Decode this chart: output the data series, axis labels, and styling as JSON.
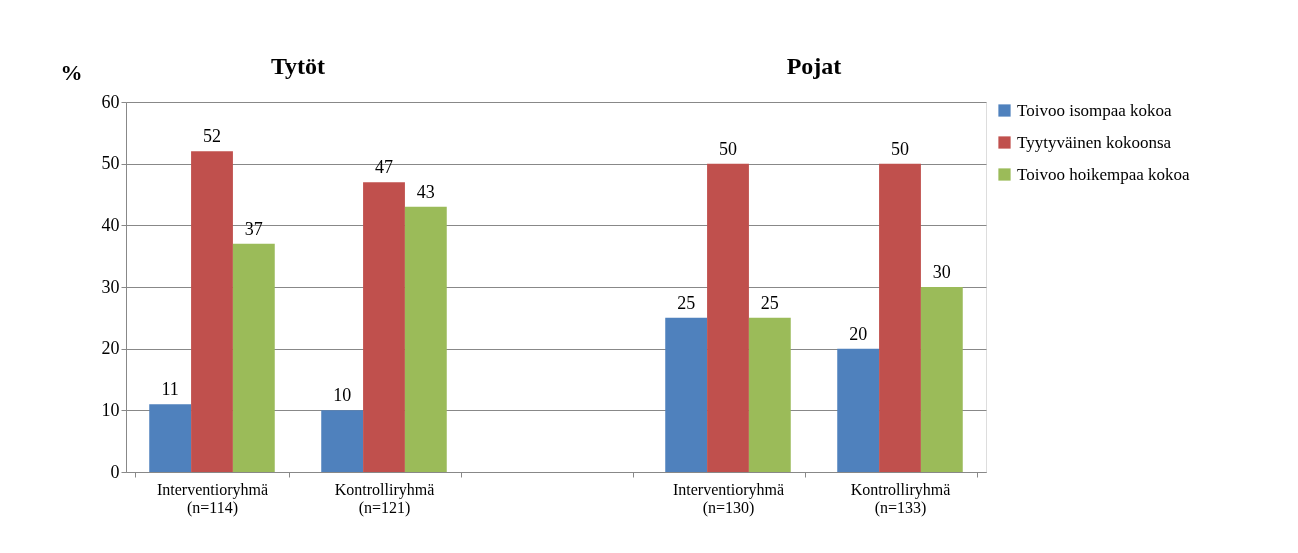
{
  "chart_data": {
    "type": "bar",
    "categories": [
      "Interventioryhmä\n(n=114)",
      "Kontrolliryhmä\n(n=121)",
      null,
      "Interventioryhmä\n(n=130)",
      "Kontrolliryhmä\n(n=133)"
    ],
    "series": [
      {
        "name": "Toivoo isompaa kokoa",
        "color": "#4f81bd",
        "values": [
          11,
          10,
          null,
          25,
          20
        ]
      },
      {
        "name": "Tyytyväinen kokoonsa",
        "color": "#c0504d",
        "values": [
          52,
          47,
          null,
          50,
          50
        ]
      },
      {
        "name": "Toivoo hoikempaa kokoa",
        "color": "#9bbb59",
        "values": [
          37,
          43,
          null,
          25,
          30
        ]
      }
    ],
    "ylabel": "%",
    "annotations": [
      "Tytöt",
      "Pojat"
    ],
    "ylim": [
      0,
      60
    ],
    "yticks": [
      0,
      10,
      20,
      30,
      40,
      50,
      60
    ],
    "grid": "y",
    "legend": "right",
    "data_labels": true
  }
}
